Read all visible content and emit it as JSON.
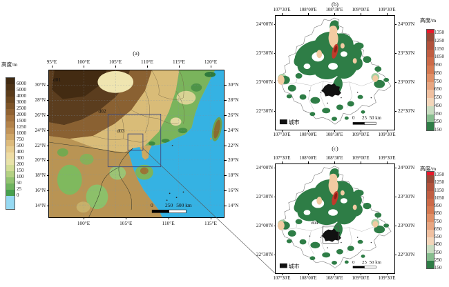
{
  "figure": {
    "panel_a_title": "(a)",
    "panel_b_title": "(b)",
    "panel_c_title": "(c)"
  },
  "panel_a": {
    "lon_top": [
      "95°E",
      "100°E",
      "105°E",
      "110°E",
      "115°E",
      "120°E"
    ],
    "lon_bottom": [
      "100°E",
      "105°E",
      "110°E",
      "115°E"
    ],
    "lat_left": [
      "30°N",
      "28°N",
      "26°N",
      "24°N",
      "22°N",
      "20°N",
      "18°N",
      "16°N",
      "14°N"
    ],
    "lat_right": [
      "30°N",
      "28°N",
      "26°N",
      "24°N",
      "22°N",
      "20°N",
      "18°N",
      "16°N",
      "14°N"
    ],
    "domain_labels": {
      "d01": "d01",
      "d02": "d02",
      "d03": "d03"
    },
    "scalebar": {
      "t0": "0",
      "t1": "250",
      "t2": "500 km"
    }
  },
  "panel_bc": {
    "lon": [
      "107°30'E",
      "108°00'E",
      "108°30'E",
      "109°00'E",
      "109°30'E"
    ],
    "lat": [
      "24°00'N",
      "23°30'N",
      "23°00'N",
      "22°30'N"
    ],
    "legend_city": "城市",
    "scalebar": {
      "t0": "0",
      "t1": "25",
      "t2": "50 km"
    },
    "d04_label": "d04"
  },
  "colorbar_a": {
    "title": "高度/m",
    "values": [
      "6000",
      "5000",
      "4000",
      "3000",
      "2500",
      "2000",
      "1500",
      "1250",
      "1000",
      "750",
      "500",
      "400",
      "300",
      "200",
      "150",
      "100",
      "50",
      "25",
      "0"
    ],
    "colors": [
      "#402a12",
      "#4d3316",
      "#5b3c1b",
      "#6b4720",
      "#7d5428",
      "#906232",
      "#a3723e",
      "#b3834b",
      "#c29459",
      "#d0a768",
      "#ddbb7c",
      "#e7cd90",
      "#eedca3",
      "#e9e3a9",
      "#d3dd96",
      "#b4d183",
      "#92c370",
      "#6fb35f",
      "#47a04e",
      "#96d9f2"
    ]
  },
  "colorbar_bc": {
    "title": "高度/m",
    "values": [
      "1350",
      "1250",
      "1150",
      "1050",
      "950",
      "850",
      "750",
      "650",
      "550",
      "450",
      "350",
      "250",
      "150"
    ],
    "colors": [
      "#e8192c",
      "#9a4836",
      "#b0523c",
      "#c05e42",
      "#cc6a48",
      "#d67a52",
      "#e09067",
      "#e8a681",
      "#f0c0a0",
      "#f3d6ba",
      "#c8dcc0",
      "#86bd8e",
      "#2e7d46"
    ]
  },
  "colors": {
    "sea": "#35b2e3",
    "inset_box": "#3f4a7e",
    "forest_green": "#2e7d46",
    "salmon_patch": "#f2cba2",
    "peak_red": "#c03a2b",
    "city_black": "#111111"
  }
}
